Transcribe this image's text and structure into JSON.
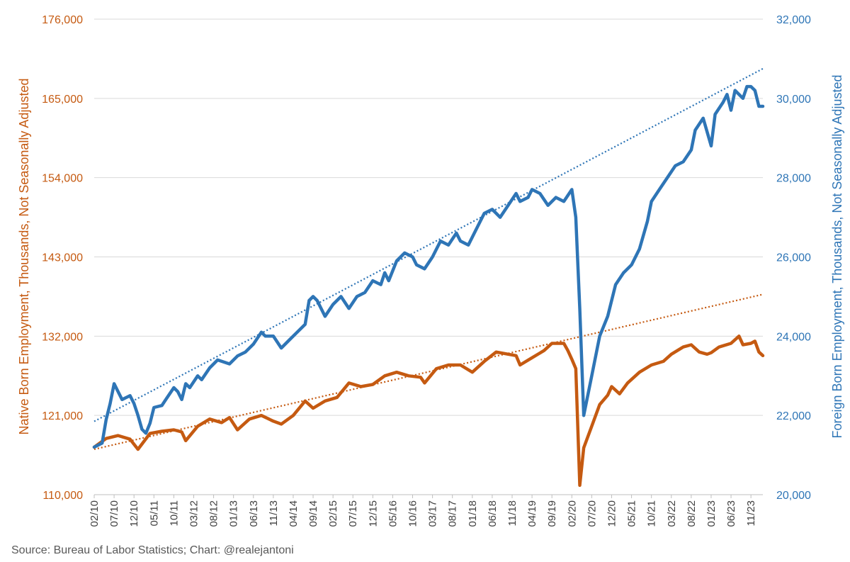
{
  "chart_data": {
    "type": "line",
    "left_axis": {
      "label": "Native Born Employment, Thousands, Not Seasonally Adjusted",
      "ticks": [
        "110,000",
        "121,000",
        "132,000",
        "143,000",
        "154,000",
        "165,000",
        "176,000"
      ],
      "ylim": [
        110000,
        176000
      ],
      "color": "#C55A11"
    },
    "right_axis": {
      "label": "Foreign Born Employment, Thousands, Not Seasonally Adjusted",
      "ticks": [
        "20,000",
        "22,000",
        "24,000",
        "26,000",
        "28,000",
        "30,000",
        "32,000"
      ],
      "ylim": [
        20000,
        32000
      ],
      "color": "#2E75B6"
    },
    "x_ticks": [
      "02/10",
      "07/10",
      "12/10",
      "05/11",
      "10/11",
      "03/12",
      "08/12",
      "01/13",
      "06/13",
      "11/13",
      "04/14",
      "09/14",
      "02/15",
      "07/15",
      "12/15",
      "05/16",
      "10/16",
      "03/17",
      "08/17",
      "01/18",
      "06/18",
      "11/18",
      "04/19",
      "09/19",
      "02/20",
      "07/20",
      "12/20",
      "05/21",
      "10/21",
      "03/22",
      "08/22",
      "01/23",
      "06/23",
      "11/23"
    ],
    "x_range": [
      "02/10",
      "02/24"
    ],
    "gridlines": true,
    "series": [
      {
        "axis": "left",
        "color": "#C55A11",
        "trendline": true,
        "trend_start": 116300,
        "trend_end": 137800,
        "points": [
          [
            "02/10",
            116600
          ],
          [
            "05/10",
            117800
          ],
          [
            "08/10",
            118200
          ],
          [
            "11/10",
            117700
          ],
          [
            "01/11",
            116300
          ],
          [
            "04/11",
            118500
          ],
          [
            "07/11",
            118800
          ],
          [
            "10/11",
            119000
          ],
          [
            "12/11",
            118700
          ],
          [
            "01/12",
            117500
          ],
          [
            "04/12",
            119500
          ],
          [
            "07/12",
            120500
          ],
          [
            "10/12",
            120000
          ],
          [
            "12/12",
            120700
          ],
          [
            "02/13",
            119000
          ],
          [
            "05/13",
            120500
          ],
          [
            "08/13",
            121000
          ],
          [
            "11/13",
            120200
          ],
          [
            "01/14",
            119800
          ],
          [
            "04/14",
            121000
          ],
          [
            "07/14",
            123000
          ],
          [
            "09/14",
            122000
          ],
          [
            "12/14",
            123000
          ],
          [
            "03/15",
            123500
          ],
          [
            "06/15",
            125500
          ],
          [
            "09/15",
            125000
          ],
          [
            "12/15",
            125300
          ],
          [
            "03/16",
            126500
          ],
          [
            "06/16",
            127000
          ],
          [
            "09/16",
            126500
          ],
          [
            "12/16",
            126300
          ],
          [
            "01/17",
            125500
          ],
          [
            "04/17",
            127500
          ],
          [
            "07/17",
            128000
          ],
          [
            "10/17",
            128000
          ],
          [
            "01/18",
            127000
          ],
          [
            "04/18",
            128500
          ],
          [
            "07/18",
            129800
          ],
          [
            "10/18",
            129500
          ],
          [
            "12/18",
            129300
          ],
          [
            "01/19",
            128000
          ],
          [
            "04/19",
            129000
          ],
          [
            "07/19",
            130000
          ],
          [
            "09/19",
            131000
          ],
          [
            "12/19",
            131000
          ],
          [
            "01/20",
            130000
          ],
          [
            "02/20",
            128800
          ],
          [
            "03/20",
            127500
          ],
          [
            "04/20",
            111300
          ],
          [
            "05/20",
            116500
          ],
          [
            "07/20",
            119500
          ],
          [
            "09/20",
            122500
          ],
          [
            "11/20",
            123800
          ],
          [
            "12/20",
            125000
          ],
          [
            "02/21",
            124000
          ],
          [
            "04/21",
            125500
          ],
          [
            "07/21",
            127000
          ],
          [
            "10/21",
            128000
          ],
          [
            "01/22",
            128500
          ],
          [
            "03/22",
            129500
          ],
          [
            "06/22",
            130500
          ],
          [
            "08/22",
            130800
          ],
          [
            "10/22",
            129800
          ],
          [
            "12/22",
            129500
          ],
          [
            "01/23",
            129700
          ],
          [
            "03/23",
            130500
          ],
          [
            "06/23",
            131000
          ],
          [
            "08/23",
            132000
          ],
          [
            "09/23",
            130800
          ],
          [
            "11/23",
            131000
          ],
          [
            "12/23",
            131300
          ],
          [
            "01/24",
            129800
          ],
          [
            "02/24",
            129300
          ]
        ]
      },
      {
        "axis": "right",
        "color": "#2E75B6",
        "trendline": true,
        "trend_start": 21850,
        "trend_end": 30750,
        "points": [
          [
            "02/10",
            21200
          ],
          [
            "04/10",
            21300
          ],
          [
            "05/10",
            21900
          ],
          [
            "06/10",
            22300
          ],
          [
            "07/10",
            22800
          ],
          [
            "08/10",
            22600
          ],
          [
            "09/10",
            22400
          ],
          [
            "10/10",
            22450
          ],
          [
            "11/10",
            22500
          ],
          [
            "12/10",
            22300
          ],
          [
            "01/11",
            22000
          ],
          [
            "02/11",
            21650
          ],
          [
            "03/11",
            21550
          ],
          [
            "04/11",
            21800
          ],
          [
            "05/11",
            22200
          ],
          [
            "07/11",
            22250
          ],
          [
            "08/11",
            22400
          ],
          [
            "10/11",
            22700
          ],
          [
            "11/11",
            22600
          ],
          [
            "12/11",
            22400
          ],
          [
            "01/12",
            22800
          ],
          [
            "02/12",
            22700
          ],
          [
            "04/12",
            23000
          ],
          [
            "05/12",
            22900
          ],
          [
            "07/12",
            23200
          ],
          [
            "09/12",
            23400
          ],
          [
            "12/12",
            23300
          ],
          [
            "02/13",
            23500
          ],
          [
            "04/13",
            23600
          ],
          [
            "06/13",
            23800
          ],
          [
            "08/13",
            24100
          ],
          [
            "09/13",
            24000
          ],
          [
            "11/13",
            24000
          ],
          [
            "01/14",
            23700
          ],
          [
            "03/14",
            23900
          ],
          [
            "05/14",
            24100
          ],
          [
            "07/14",
            24300
          ],
          [
            "08/14",
            24900
          ],
          [
            "09/14",
            25000
          ],
          [
            "10/14",
            24900
          ],
          [
            "12/14",
            24500
          ],
          [
            "02/15",
            24800
          ],
          [
            "04/15",
            25000
          ],
          [
            "06/15",
            24700
          ],
          [
            "08/15",
            25000
          ],
          [
            "10/15",
            25100
          ],
          [
            "12/15",
            25400
          ],
          [
            "02/16",
            25300
          ],
          [
            "03/16",
            25600
          ],
          [
            "04/16",
            25400
          ],
          [
            "06/16",
            25900
          ],
          [
            "08/16",
            26100
          ],
          [
            "10/16",
            26000
          ],
          [
            "11/16",
            25800
          ],
          [
            "01/17",
            25700
          ],
          [
            "03/17",
            26000
          ],
          [
            "05/17",
            26400
          ],
          [
            "07/17",
            26300
          ],
          [
            "09/17",
            26600
          ],
          [
            "10/17",
            26400
          ],
          [
            "12/17",
            26300
          ],
          [
            "02/18",
            26700
          ],
          [
            "04/18",
            27100
          ],
          [
            "06/18",
            27200
          ],
          [
            "08/18",
            27000
          ],
          [
            "10/18",
            27300
          ],
          [
            "12/18",
            27600
          ],
          [
            "01/19",
            27400
          ],
          [
            "03/19",
            27500
          ],
          [
            "04/19",
            27700
          ],
          [
            "06/19",
            27600
          ],
          [
            "08/19",
            27300
          ],
          [
            "10/19",
            27500
          ],
          [
            "12/19",
            27400
          ],
          [
            "02/20",
            27700
          ],
          [
            "03/20",
            27000
          ],
          [
            "04/20",
            24700
          ],
          [
            "05/20",
            22000
          ],
          [
            "07/20",
            23000
          ],
          [
            "09/20",
            24000
          ],
          [
            "11/20",
            24500
          ],
          [
            "01/21",
            25300
          ],
          [
            "03/21",
            25600
          ],
          [
            "05/21",
            25800
          ],
          [
            "07/21",
            26200
          ],
          [
            "09/21",
            26900
          ],
          [
            "10/21",
            27400
          ],
          [
            "12/21",
            27700
          ],
          [
            "02/22",
            28000
          ],
          [
            "04/22",
            28300
          ],
          [
            "06/22",
            28400
          ],
          [
            "08/22",
            28700
          ],
          [
            "09/22",
            29200
          ],
          [
            "11/22",
            29500
          ],
          [
            "01/23",
            28800
          ],
          [
            "02/23",
            29600
          ],
          [
            "04/23",
            29900
          ],
          [
            "05/23",
            30100
          ],
          [
            "06/23",
            29700
          ],
          [
            "07/23",
            30200
          ],
          [
            "09/23",
            30000
          ],
          [
            "10/23",
            30300
          ],
          [
            "11/23",
            30300
          ],
          [
            "12/23",
            30200
          ],
          [
            "01/24",
            29800
          ],
          [
            "02/24",
            29800
          ]
        ]
      }
    ]
  },
  "source": "Source: Bureau of Labor Statistics; Chart: @realejantoni"
}
